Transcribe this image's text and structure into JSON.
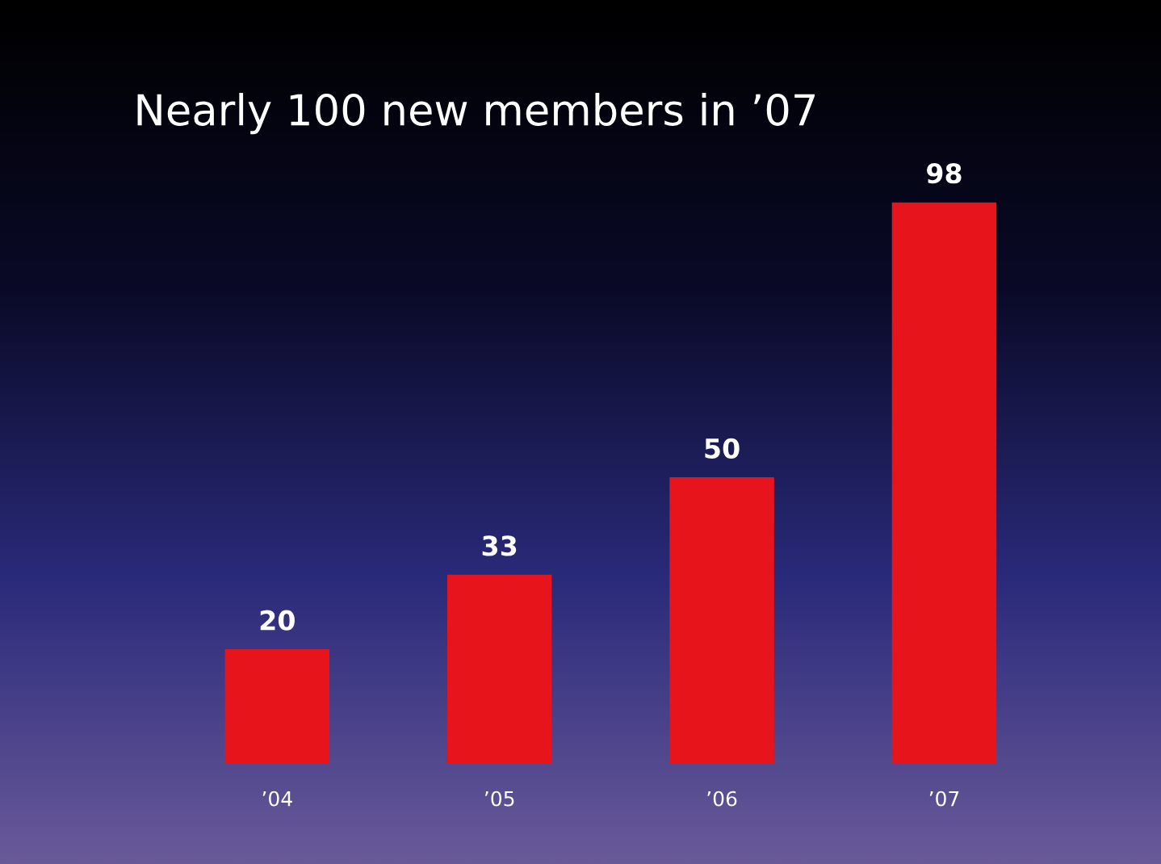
{
  "chart_data": {
    "type": "bar",
    "title": "Nearly 100 new members in ’07",
    "categories": [
      "’04",
      "’05",
      "’06",
      "’07"
    ],
    "values": [
      20,
      33,
      50,
      98
    ],
    "color": "#e8141c",
    "data_labels": true,
    "grid": false,
    "legend": false
  }
}
